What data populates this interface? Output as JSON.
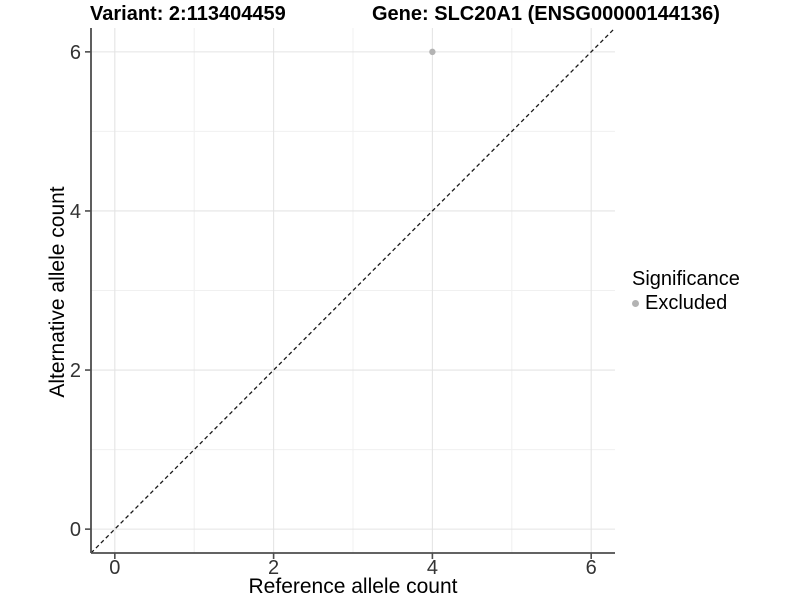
{
  "chart_data": {
    "type": "scatter",
    "title_left": "Variant: 2:113404459",
    "title_right": "Gene: SLC20A1 (ENSG00000144136)",
    "xlabel": "Reference allele count",
    "ylabel": "Alternative allele count",
    "xlim": [
      -0.3,
      6.3
    ],
    "ylim": [
      -0.3,
      6.3
    ],
    "x_major_ticks": [
      0,
      2,
      4,
      6
    ],
    "y_major_ticks": [
      0,
      2,
      4,
      6
    ],
    "x_minor_ticks": [
      1,
      3,
      5
    ],
    "y_minor_ticks": [
      1,
      3,
      5
    ],
    "grid": true,
    "identity_line": {
      "slope": 1,
      "intercept": 0,
      "style": "dashed",
      "color": "#1a1a1a"
    },
    "series": [
      {
        "name": "Excluded",
        "points": [
          {
            "x": 4,
            "y": 6
          }
        ],
        "color": "#b3b3b3"
      }
    ],
    "legend": {
      "title": "Significance",
      "position": "right",
      "items": [
        {
          "label": "Excluded",
          "color": "#b3b3b3"
        }
      ]
    }
  },
  "colors": {
    "axis_line": "#4d4d4d",
    "grid_major": "#e4e4e4",
    "grid_minor": "#f0f0f0",
    "tick_label": "#333333",
    "background": "#ffffff"
  }
}
